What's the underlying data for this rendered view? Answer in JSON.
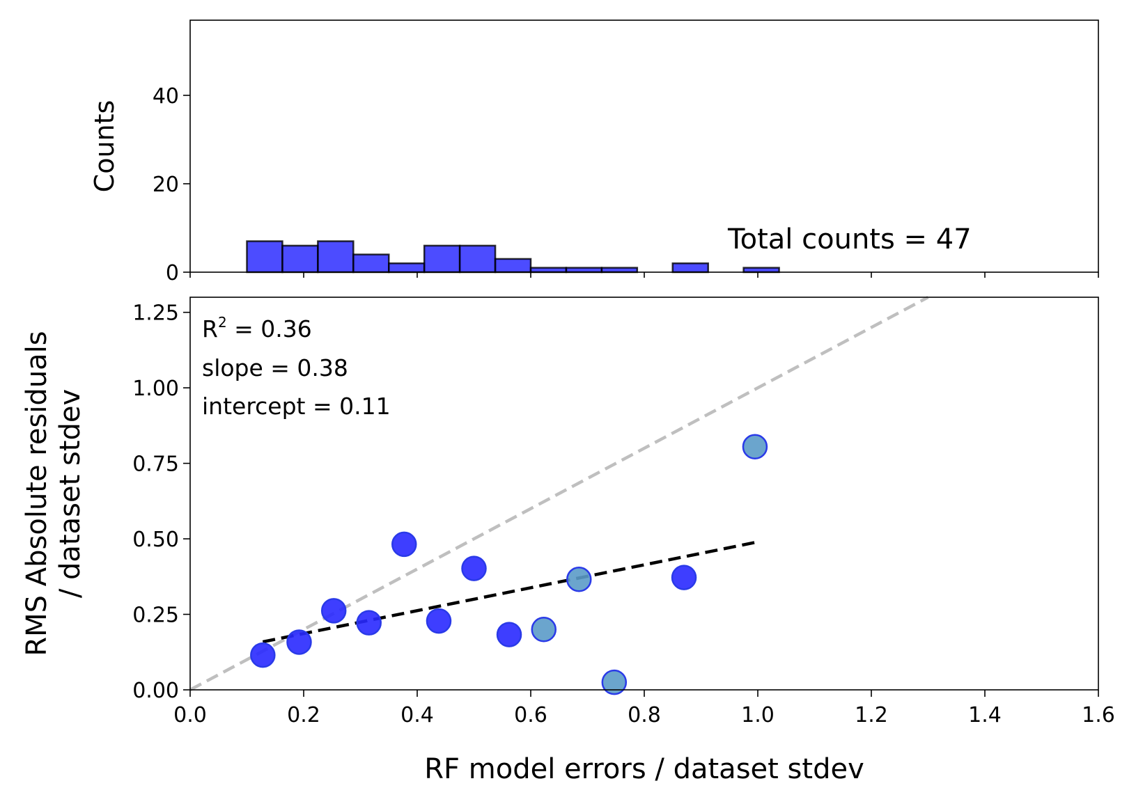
{
  "colors": {
    "bar_fill": "#0000ff",
    "bar_alpha": 0.7,
    "bar_edge": "#000000",
    "point_blue": "#2929ff",
    "point_teal": "#5b9bc8",
    "point_edge": "#2a3ae8",
    "identity_line": "#bfbfbf",
    "fit_line": "#000000"
  },
  "chart_data": [
    {
      "type": "bar",
      "role": "histogram",
      "ylabel": "Counts",
      "ylim": [
        0,
        57
      ],
      "xlim": [
        0,
        1.6
      ],
      "yticks": [
        "0",
        "20",
        "40"
      ],
      "annotation": "Total counts = 47",
      "bins": [
        {
          "x0": 0.1,
          "x1": 0.1625,
          "count": 7
        },
        {
          "x0": 0.1625,
          "x1": 0.225,
          "count": 6
        },
        {
          "x0": 0.225,
          "x1": 0.2875,
          "count": 7
        },
        {
          "x0": 0.2875,
          "x1": 0.35,
          "count": 4
        },
        {
          "x0": 0.35,
          "x1": 0.4125,
          "count": 2
        },
        {
          "x0": 0.4125,
          "x1": 0.475,
          "count": 6
        },
        {
          "x0": 0.475,
          "x1": 0.5375,
          "count": 6
        },
        {
          "x0": 0.5375,
          "x1": 0.6,
          "count": 3
        },
        {
          "x0": 0.6,
          "x1": 0.6625,
          "count": 1
        },
        {
          "x0": 0.6625,
          "x1": 0.725,
          "count": 1
        },
        {
          "x0": 0.725,
          "x1": 0.7875,
          "count": 1
        },
        {
          "x0": 0.85,
          "x1": 0.9125,
          "count": 2
        },
        {
          "x0": 0.975,
          "x1": 1.0375,
          "count": 1
        }
      ]
    },
    {
      "type": "scatter",
      "xlabel": "RF model errors / dataset stdev",
      "ylabel_line1": "RMS Absolute residuals",
      "ylabel_line2": "/ dataset stdev",
      "xlim": [
        0,
        1.6
      ],
      "ylim": [
        0,
        1.3
      ],
      "xticks": [
        "0.0",
        "0.2",
        "0.4",
        "0.6",
        "0.8",
        "1.0",
        "1.2",
        "1.4",
        "1.6"
      ],
      "yticks": [
        "0.00",
        "0.25",
        "0.50",
        "0.75",
        "1.00",
        "1.25"
      ],
      "stats": {
        "r2_label": "R",
        "r2_sup": "2",
        "r2_value": " = 0.36",
        "slope": "slope = 0.38",
        "intercept": "intercept = 0.11"
      },
      "points": [
        {
          "x": 0.128,
          "y": 0.115,
          "color": "blue"
        },
        {
          "x": 0.192,
          "y": 0.158,
          "color": "blue"
        },
        {
          "x": 0.253,
          "y": 0.262,
          "color": "blue"
        },
        {
          "x": 0.315,
          "y": 0.222,
          "color": "blue"
        },
        {
          "x": 0.377,
          "y": 0.482,
          "color": "blue"
        },
        {
          "x": 0.438,
          "y": 0.228,
          "color": "blue"
        },
        {
          "x": 0.5,
          "y": 0.402,
          "color": "blue"
        },
        {
          "x": 0.562,
          "y": 0.183,
          "color": "blue"
        },
        {
          "x": 0.623,
          "y": 0.2,
          "color": "teal"
        },
        {
          "x": 0.685,
          "y": 0.366,
          "color": "teal"
        },
        {
          "x": 0.747,
          "y": 0.025,
          "color": "teal"
        },
        {
          "x": 0.87,
          "y": 0.372,
          "color": "blue"
        },
        {
          "x": 0.995,
          "y": 0.805,
          "color": "teal"
        }
      ],
      "identity_line": {
        "x": [
          0,
          1.3
        ],
        "y": [
          0,
          1.3
        ]
      },
      "fit_line": {
        "x": [
          0.128,
          0.995
        ],
        "y": [
          0.159,
          0.488
        ]
      }
    }
  ]
}
